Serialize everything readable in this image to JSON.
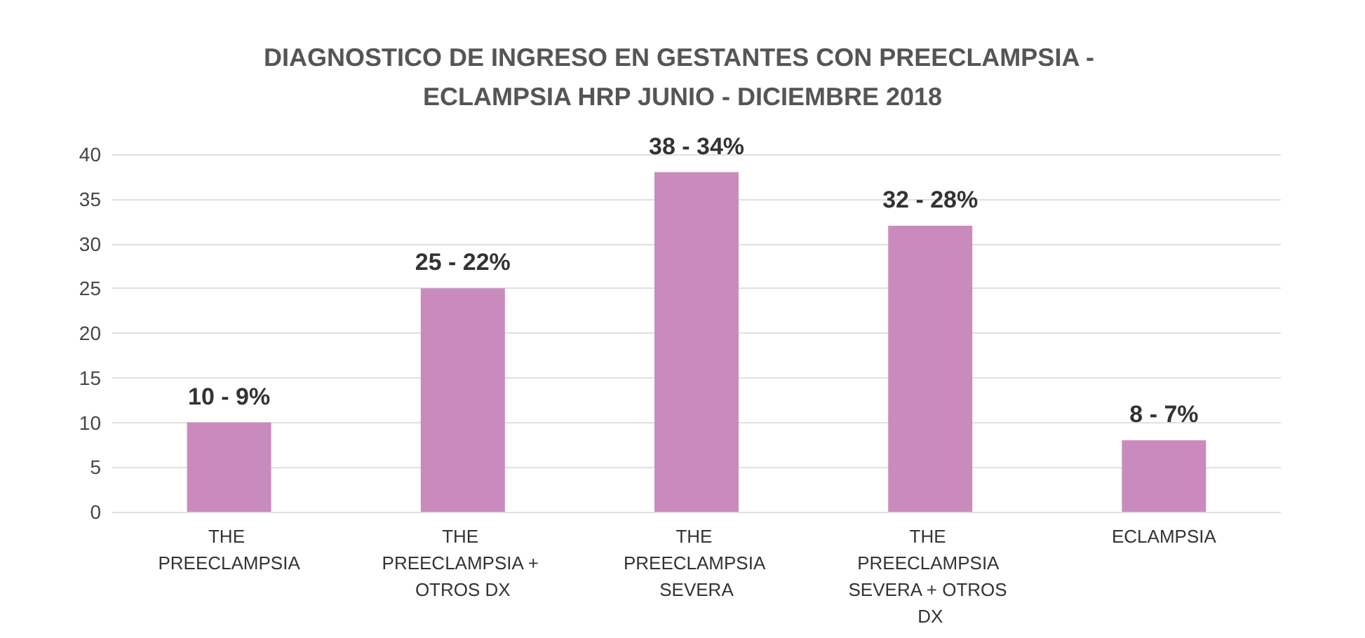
{
  "chart_data": {
    "type": "bar",
    "title": "DIAGNOSTICO DE INGRESO EN GESTANTES CON PREECLAMPSIA - ECLAMPSIA HRP JUNIO - DICIEMBRE 2018",
    "categories": [
      "THE PREECLAMPSIA",
      "THE PREECLAMPSIA + OTROS DX",
      "THE PREECLAMPSIA SEVERA",
      "THE PREECLAMPSIA SEVERA + OTROS DX",
      "ECLAMPSIA"
    ],
    "values": [
      10,
      25,
      38,
      32,
      8
    ],
    "color": "#c98bbd",
    "value_labels": [
      "10 - 9%",
      "25 - 22%",
      "38 - 34%",
      "32 - 28%",
      "8 - 7%"
    ],
    "ylim": [
      0,
      40
    ],
    "yticks": [
      0,
      5,
      10,
      15,
      20,
      25,
      30,
      35,
      40
    ],
    "grid": "y"
  }
}
